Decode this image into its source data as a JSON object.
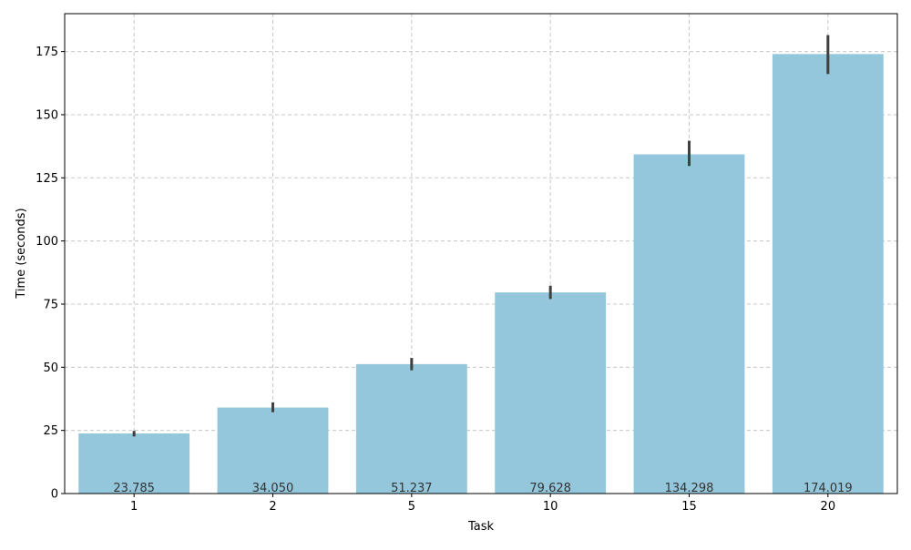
{
  "chart_data": {
    "type": "bar",
    "title": "",
    "xlabel": "Task",
    "ylabel": "Time (seconds)",
    "categories": [
      "1",
      "2",
      "5",
      "10",
      "15",
      "20"
    ],
    "values": [
      23.785,
      34.05,
      51.237,
      79.628,
      134.298,
      174.019
    ],
    "data_labels": [
      "23.785",
      "34.050",
      "51.237",
      "79.628",
      "134.298",
      "174.019"
    ],
    "error_low": [
      22.6,
      32.2,
      48.8,
      77.0,
      129.7,
      166.1
    ],
    "error_high": [
      24.8,
      36.1,
      53.7,
      82.3,
      139.7,
      181.5
    ],
    "ylim": [
      0,
      190
    ],
    "yticks": [
      0,
      25,
      50,
      75,
      100,
      125,
      150,
      175
    ],
    "grid": true,
    "colors": {
      "bar": "#94c7dc",
      "error_bar": "#404040",
      "grid": "#c8c8c8",
      "label": "#333333"
    }
  }
}
